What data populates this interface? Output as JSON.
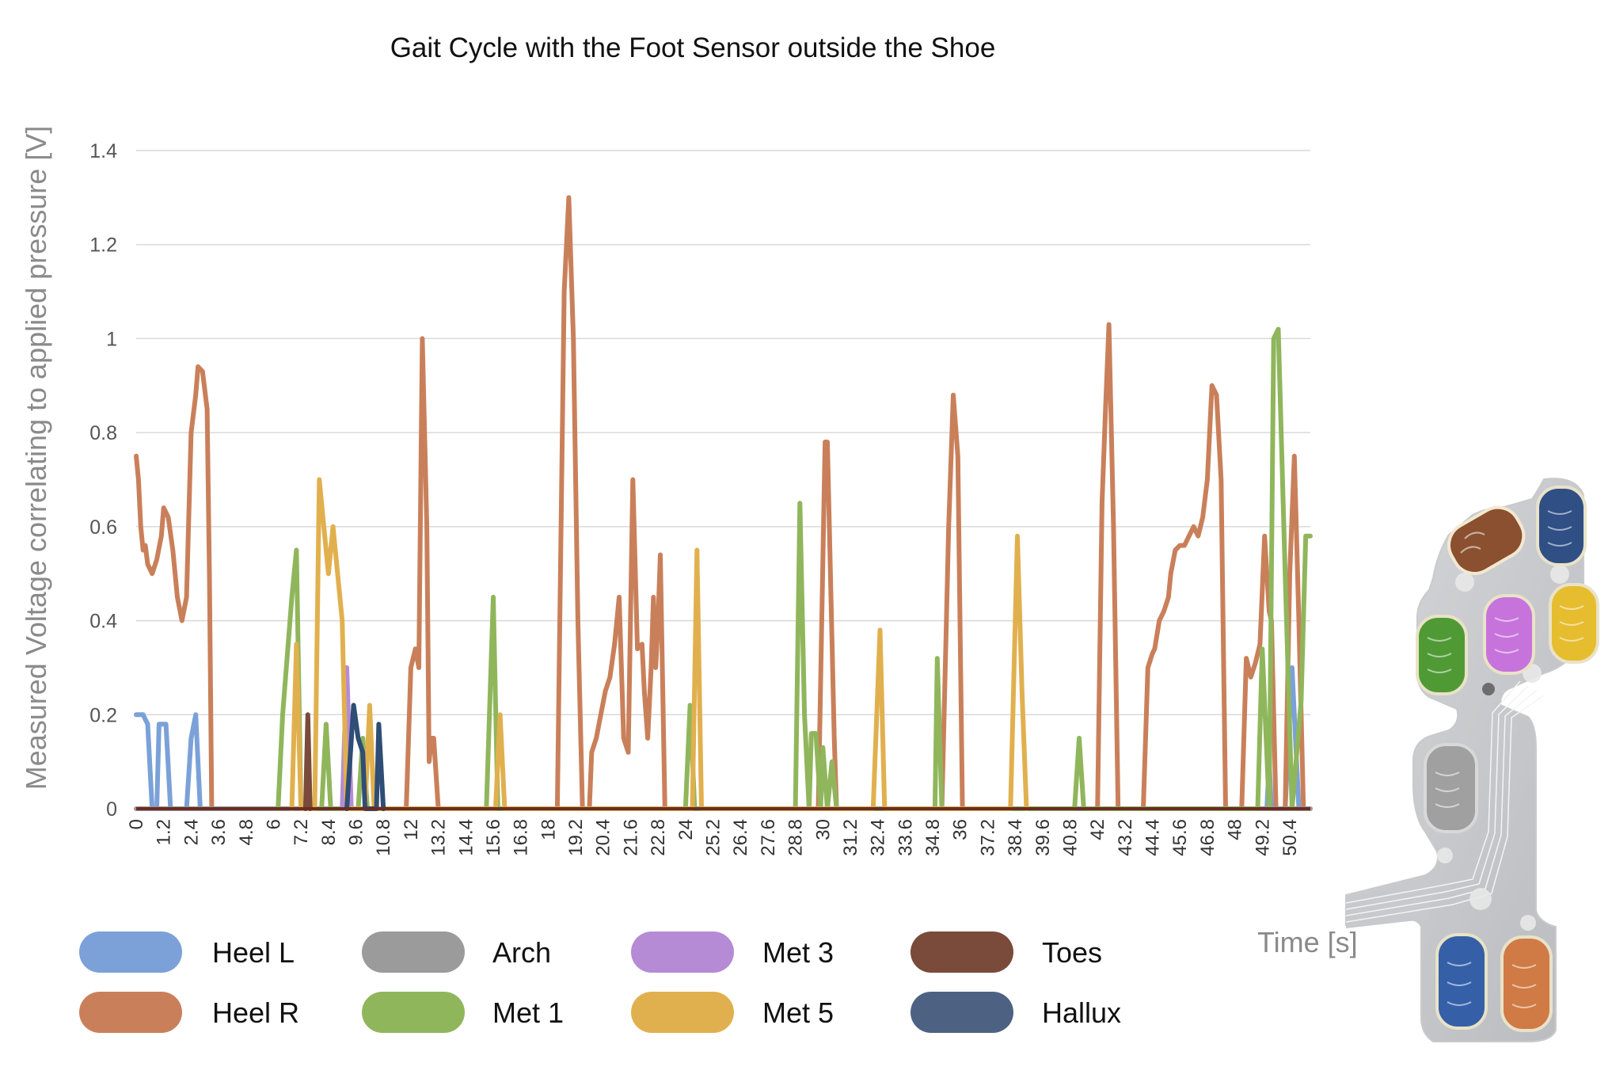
{
  "chart_data": {
    "type": "line",
    "title": "Gait Cycle with the Foot Sensor outside the Shoe",
    "ylabel": "Measured Voltage correlating to applied pressure [V]",
    "xlabel": "Time [s]",
    "ylim": [
      0,
      1.4
    ],
    "yticks": [
      0,
      0.2,
      0.4,
      0.6,
      0.8,
      1,
      1.2,
      1.4
    ],
    "ytick_labels": [
      "0",
      "0.2",
      "0.4",
      "0.6",
      "0.8",
      "1",
      "1.2",
      "1.4"
    ],
    "xlim": [
      0,
      51.3
    ],
    "xtick_labels": [
      "0",
      "1.2",
      "2.4",
      "3.6",
      "4.8",
      "6",
      "7.2",
      "8.4",
      "9.6",
      "10.8",
      "12",
      "13.2",
      "14.4",
      "15.6",
      "16.8",
      "18",
      "19.2",
      "20.4",
      "21.6",
      "22.8",
      "24",
      "25.2",
      "26.4",
      "27.6",
      "28.8",
      "30",
      "31.2",
      "32.4",
      "33.6",
      "34.8",
      "36",
      "37.2",
      "38.4",
      "39.6",
      "40.8",
      "42",
      "43.2",
      "44.4",
      "45.6",
      "46.8",
      "48",
      "49.2",
      "50.4"
    ],
    "grid": true,
    "legend_position": "bottom",
    "series": [
      {
        "name": "Heel L",
        "color": "#7ba1d8",
        "points": [
          [
            0,
            0.2
          ],
          [
            0.3,
            0.2
          ],
          [
            0.5,
            0.18
          ],
          [
            0.7,
            0
          ],
          [
            0.9,
            0
          ],
          [
            1.0,
            0.18
          ],
          [
            1.3,
            0.18
          ],
          [
            1.5,
            0
          ],
          [
            2.2,
            0
          ],
          [
            2.4,
            0.15
          ],
          [
            2.6,
            0.2
          ],
          [
            2.8,
            0
          ],
          [
            49.4,
            0
          ],
          [
            49.5,
            0.1
          ],
          [
            49.6,
            0
          ],
          [
            50.2,
            0
          ],
          [
            50.5,
            0.3
          ],
          [
            50.8,
            0
          ]
        ]
      },
      {
        "name": "Heel R",
        "color": "#c9805a",
        "points": [
          [
            0,
            0.75
          ],
          [
            0.1,
            0.7
          ],
          [
            0.2,
            0.6
          ],
          [
            0.3,
            0.55
          ],
          [
            0.4,
            0.56
          ],
          [
            0.5,
            0.52
          ],
          [
            0.7,
            0.5
          ],
          [
            0.9,
            0.53
          ],
          [
            1.1,
            0.58
          ],
          [
            1.2,
            0.64
          ],
          [
            1.4,
            0.62
          ],
          [
            1.6,
            0.55
          ],
          [
            1.8,
            0.45
          ],
          [
            2.0,
            0.4
          ],
          [
            2.2,
            0.45
          ],
          [
            2.4,
            0.8
          ],
          [
            2.6,
            0.88
          ],
          [
            2.7,
            0.94
          ],
          [
            2.9,
            0.93
          ],
          [
            3.1,
            0.85
          ],
          [
            3.2,
            0.5
          ],
          [
            3.3,
            0
          ],
          [
            11.8,
            0
          ],
          [
            12.0,
            0.3
          ],
          [
            12.2,
            0.34
          ],
          [
            12.35,
            0.3
          ],
          [
            12.5,
            1.0
          ],
          [
            12.7,
            0.6
          ],
          [
            12.8,
            0.1
          ],
          [
            12.9,
            0.15
          ],
          [
            13.0,
            0.15
          ],
          [
            13.2,
            0
          ],
          [
            18.4,
            0
          ],
          [
            18.7,
            1.1
          ],
          [
            18.9,
            1.3
          ],
          [
            19.1,
            1.0
          ],
          [
            19.3,
            0.4
          ],
          [
            19.5,
            0
          ],
          [
            19.8,
            0
          ],
          [
            19.9,
            0.12
          ],
          [
            20.1,
            0.15
          ],
          [
            20.3,
            0.2
          ],
          [
            20.5,
            0.25
          ],
          [
            20.7,
            0.28
          ],
          [
            20.9,
            0.35
          ],
          [
            21.1,
            0.45
          ],
          [
            21.3,
            0.15
          ],
          [
            21.5,
            0.12
          ],
          [
            21.7,
            0.7
          ],
          [
            21.9,
            0.34
          ],
          [
            22.1,
            0.35
          ],
          [
            22.2,
            0.25
          ],
          [
            22.35,
            0.15
          ],
          [
            22.5,
            0.3
          ],
          [
            22.6,
            0.45
          ],
          [
            22.7,
            0.3
          ],
          [
            22.8,
            0.4
          ],
          [
            22.9,
            0.54
          ],
          [
            23.1,
            0
          ],
          [
            29.8,
            0
          ],
          [
            30.1,
            0.78
          ],
          [
            30.2,
            0.78
          ],
          [
            30.5,
            0.15
          ],
          [
            30.6,
            0
          ],
          [
            35.2,
            0
          ],
          [
            35.5,
            0.6
          ],
          [
            35.7,
            0.88
          ],
          [
            35.9,
            0.75
          ],
          [
            36.1,
            0
          ],
          [
            42.0,
            0
          ],
          [
            42.2,
            0.65
          ],
          [
            42.35,
            0.85
          ],
          [
            42.5,
            1.03
          ],
          [
            42.7,
            0.6
          ],
          [
            42.9,
            0
          ],
          [
            44.0,
            0
          ],
          [
            44.2,
            0.3
          ],
          [
            44.4,
            0.33
          ],
          [
            44.5,
            0.34
          ],
          [
            44.7,
            0.4
          ],
          [
            44.9,
            0.42
          ],
          [
            45.1,
            0.45
          ],
          [
            45.2,
            0.5
          ],
          [
            45.4,
            0.55
          ],
          [
            45.6,
            0.56
          ],
          [
            45.8,
            0.56
          ],
          [
            46.0,
            0.58
          ],
          [
            46.2,
            0.6
          ],
          [
            46.4,
            0.58
          ],
          [
            46.6,
            0.62
          ],
          [
            46.8,
            0.7
          ],
          [
            47.0,
            0.9
          ],
          [
            47.2,
            0.88
          ],
          [
            47.4,
            0.7
          ],
          [
            47.6,
            0
          ],
          [
            48.3,
            0
          ],
          [
            48.5,
            0.32
          ],
          [
            48.7,
            0.28
          ],
          [
            48.9,
            0.31
          ],
          [
            49.1,
            0.35
          ],
          [
            49.3,
            0.58
          ],
          [
            49.5,
            0.42
          ],
          [
            49.6,
            0.4
          ],
          [
            49.8,
            0
          ],
          [
            50.2,
            0
          ],
          [
            50.4,
            0.5
          ],
          [
            50.6,
            0.75
          ],
          [
            50.8,
            0.4
          ],
          [
            51.0,
            0
          ]
        ]
      },
      {
        "name": "Arch",
        "color": "#9b9b9b",
        "points": [
          [
            0,
            0
          ],
          [
            51.3,
            0
          ]
        ]
      },
      {
        "name": "Met 1",
        "color": "#90b65c",
        "points": [
          [
            6.2,
            0
          ],
          [
            6.4,
            0.2
          ],
          [
            6.8,
            0.45
          ],
          [
            7.0,
            0.55
          ],
          [
            7.2,
            0
          ],
          [
            8.1,
            0
          ],
          [
            8.3,
            0.18
          ],
          [
            8.5,
            0
          ],
          [
            9.7,
            0
          ],
          [
            9.9,
            0.15
          ],
          [
            10.1,
            0
          ],
          [
            15.3,
            0
          ],
          [
            15.6,
            0.45
          ],
          [
            15.8,
            0
          ],
          [
            24.0,
            0
          ],
          [
            24.2,
            0.22
          ],
          [
            24.4,
            0
          ],
          [
            28.8,
            0
          ],
          [
            29.0,
            0.65
          ],
          [
            29.2,
            0.2
          ],
          [
            29.4,
            0
          ],
          [
            29.5,
            0.16
          ],
          [
            29.7,
            0.16
          ],
          [
            29.9,
            0
          ],
          [
            30.0,
            0.13
          ],
          [
            30.2,
            0
          ],
          [
            30.4,
            0.1
          ],
          [
            30.6,
            0
          ],
          [
            34.9,
            0
          ],
          [
            35.0,
            0.32
          ],
          [
            35.2,
            0
          ],
          [
            41.0,
            0
          ],
          [
            41.2,
            0.15
          ],
          [
            41.4,
            0
          ],
          [
            49.0,
            0
          ],
          [
            49.2,
            0.34
          ],
          [
            49.5,
            0
          ],
          [
            49.7,
            1.0
          ],
          [
            49.9,
            1.02
          ],
          [
            50.2,
            0.5
          ],
          [
            50.5,
            0
          ],
          [
            50.9,
            0.23
          ],
          [
            51.1,
            0.58
          ],
          [
            51.3,
            0.58
          ]
        ]
      },
      {
        "name": "Met 3",
        "color": "#b58bd6",
        "points": [
          [
            9.0,
            0
          ],
          [
            9.2,
            0.3
          ],
          [
            9.4,
            0
          ]
        ]
      },
      {
        "name": "Met 5",
        "color": "#e1b04e",
        "points": [
          [
            6.8,
            0
          ],
          [
            7.0,
            0.35
          ],
          [
            7.2,
            0
          ],
          [
            7.8,
            0
          ],
          [
            8.0,
            0.7
          ],
          [
            8.2,
            0.6
          ],
          [
            8.4,
            0.5
          ],
          [
            8.6,
            0.6
          ],
          [
            8.8,
            0.5
          ],
          [
            9.0,
            0.4
          ],
          [
            9.2,
            0
          ],
          [
            10.0,
            0
          ],
          [
            10.2,
            0.22
          ],
          [
            10.4,
            0
          ],
          [
            15.7,
            0
          ],
          [
            15.9,
            0.2
          ],
          [
            16.1,
            0
          ],
          [
            24.3,
            0
          ],
          [
            24.5,
            0.55
          ],
          [
            24.7,
            0
          ],
          [
            32.2,
            0
          ],
          [
            32.5,
            0.38
          ],
          [
            32.7,
            0
          ],
          [
            38.2,
            0
          ],
          [
            38.5,
            0.58
          ],
          [
            38.7,
            0.25
          ],
          [
            38.9,
            0
          ]
        ]
      },
      {
        "name": "Toes",
        "color": "#7a4a3a",
        "points": [
          [
            7.4,
            0
          ],
          [
            7.5,
            0.2
          ],
          [
            7.6,
            0
          ]
        ]
      },
      {
        "name": "Hallux",
        "color": "#2f4d75",
        "points": [
          [
            9.2,
            0
          ],
          [
            9.5,
            0.22
          ],
          [
            9.7,
            0.15
          ],
          [
            9.9,
            0.12
          ],
          [
            10.0,
            0
          ],
          [
            10.5,
            0
          ],
          [
            10.6,
            0.18
          ],
          [
            10.8,
            0
          ]
        ]
      }
    ]
  },
  "legend": [
    {
      "label": "Heel L",
      "color": "#7ba1d8"
    },
    {
      "label": "Heel R",
      "color": "#c9805a"
    },
    {
      "label": "Arch",
      "color": "#9b9b9b"
    },
    {
      "label": "Met 1",
      "color": "#90b65c"
    },
    {
      "label": "Met 3",
      "color": "#b58bd6"
    },
    {
      "label": "Met 5",
      "color": "#e1b04e"
    },
    {
      "label": "Toes",
      "color": "#7a4a3a"
    },
    {
      "label": "Hallux",
      "color": "#4d6283"
    }
  ],
  "sensor_image": {
    "pads": [
      {
        "name": "toes",
        "color": "#8a5030"
      },
      {
        "name": "hallux",
        "color": "#2f4f85"
      },
      {
        "name": "met-1",
        "color": "#4f9a35"
      },
      {
        "name": "met-3",
        "color": "#c773dc"
      },
      {
        "name": "met-5",
        "color": "#e6bd2e"
      },
      {
        "name": "arch",
        "color": "#a0a0a0"
      },
      {
        "name": "heel-l",
        "color": "#3560a8"
      },
      {
        "name": "heel-r",
        "color": "#d07a45"
      }
    ]
  }
}
